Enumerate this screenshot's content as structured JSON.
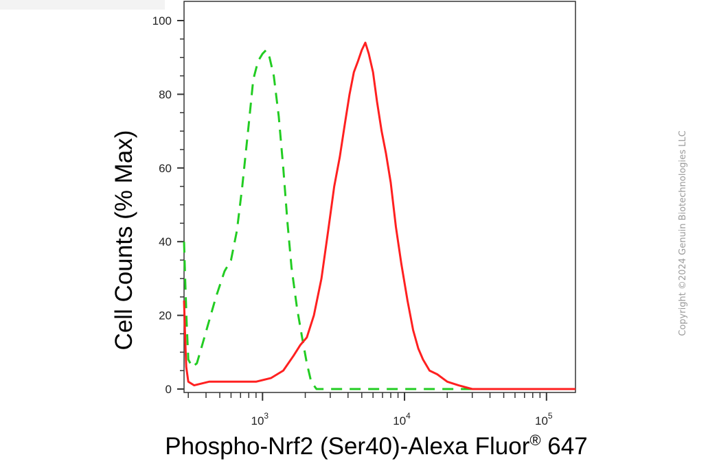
{
  "chart_data": {
    "type": "line",
    "xlabel_main": "Phospho-Nrf2 (Ser40)-Alexa Fluor",
    "xlabel_reg": "®",
    "xlabel_end": " 647",
    "ylabel": "Cell Counts (% Max)",
    "x_scale": "log",
    "xlim": [
      280,
      160000
    ],
    "ylim": [
      0,
      100
    ],
    "y_ticks": [
      0,
      20,
      40,
      60,
      80,
      100
    ],
    "x_major_ticks": [
      1000,
      10000,
      100000
    ],
    "x_tick_labels": [
      {
        "base": "10",
        "exp": "3"
      },
      {
        "base": "10",
        "exp": "4"
      },
      {
        "base": "10",
        "exp": "5"
      }
    ],
    "grid": false,
    "legend": "none",
    "series": [
      {
        "color": "#22cc22",
        "style": "dashed",
        "points": [
          [
            280,
            40
          ],
          [
            285,
            30
          ],
          [
            292,
            18
          ],
          [
            300,
            8
          ],
          [
            320,
            6
          ],
          [
            345,
            7
          ],
          [
            370,
            11
          ],
          [
            410,
            17
          ],
          [
            470,
            25
          ],
          [
            540,
            32
          ],
          [
            600,
            35
          ],
          [
            660,
            43
          ],
          [
            720,
            55
          ],
          [
            800,
            72
          ],
          [
            860,
            84
          ],
          [
            930,
            89
          ],
          [
            1000,
            91
          ],
          [
            1060,
            92
          ],
          [
            1120,
            90
          ],
          [
            1200,
            85
          ],
          [
            1300,
            74
          ],
          [
            1400,
            60
          ],
          [
            1500,
            45
          ],
          [
            1600,
            33
          ],
          [
            1750,
            22
          ],
          [
            1900,
            14
          ],
          [
            2050,
            7
          ],
          [
            2200,
            2
          ],
          [
            2400,
            0
          ],
          [
            3000,
            0
          ],
          [
            160000,
            0
          ]
        ]
      },
      {
        "color": "#ff2020",
        "style": "solid",
        "points": [
          [
            280,
            24
          ],
          [
            285,
            14
          ],
          [
            290,
            6
          ],
          [
            300,
            2
          ],
          [
            330,
            1
          ],
          [
            420,
            2
          ],
          [
            600,
            2
          ],
          [
            900,
            2
          ],
          [
            1150,
            3
          ],
          [
            1400,
            5
          ],
          [
            1650,
            9
          ],
          [
            1850,
            12
          ],
          [
            2050,
            14
          ],
          [
            2300,
            20
          ],
          [
            2600,
            30
          ],
          [
            2900,
            43
          ],
          [
            3200,
            55
          ],
          [
            3500,
            63
          ],
          [
            3800,
            72
          ],
          [
            4100,
            80
          ],
          [
            4400,
            86
          ],
          [
            4700,
            89
          ],
          [
            5000,
            92
          ],
          [
            5300,
            94
          ],
          [
            5600,
            91
          ],
          [
            6000,
            86
          ],
          [
            6400,
            78
          ],
          [
            6900,
            70
          ],
          [
            7400,
            64
          ],
          [
            8000,
            56
          ],
          [
            8700,
            44
          ],
          [
            9500,
            34
          ],
          [
            10500,
            24
          ],
          [
            11500,
            16
          ],
          [
            12500,
            11
          ],
          [
            13500,
            8
          ],
          [
            15000,
            5
          ],
          [
            17000,
            4
          ],
          [
            20000,
            2
          ],
          [
            24000,
            1
          ],
          [
            30000,
            0
          ],
          [
            40000,
            0
          ],
          [
            160000,
            0
          ]
        ]
      }
    ]
  },
  "watermark": "Copyright ©2024 Genuin Biotechnologies LLC"
}
